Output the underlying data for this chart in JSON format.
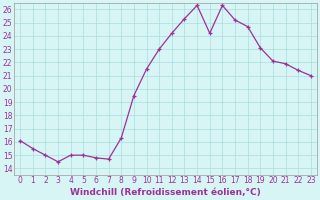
{
  "x": [
    0,
    1,
    2,
    3,
    4,
    5,
    6,
    7,
    8,
    9,
    10,
    11,
    12,
    13,
    14,
    15,
    16,
    17,
    18,
    19,
    20,
    21,
    22,
    23
  ],
  "y": [
    16.1,
    15.5,
    15.0,
    14.5,
    15.0,
    15.0,
    14.8,
    14.7,
    16.3,
    19.5,
    21.5,
    23.0,
    24.2,
    25.3,
    26.3,
    24.2,
    26.3,
    25.2,
    24.7,
    23.1,
    22.1,
    21.9,
    21.4,
    21.0
  ],
  "line_color": "#993399",
  "marker": "+",
  "marker_size": 3,
  "linewidth": 0.9,
  "markeredgewidth": 0.9,
  "background_color": "#d8f5f5",
  "grid_color": "#aadddd",
  "xlabel": "Windchill (Refroidissement éolien,°C)",
  "xlabel_color": "#993399",
  "xlabel_fontsize": 6.5,
  "tick_color": "#993399",
  "tick_fontsize": 5.5,
  "ylim": [
    13.5,
    26.5
  ],
  "yticks": [
    14,
    15,
    16,
    17,
    18,
    19,
    20,
    21,
    22,
    23,
    24,
    25,
    26
  ],
  "xticks": [
    0,
    1,
    2,
    3,
    4,
    5,
    6,
    7,
    8,
    9,
    10,
    11,
    12,
    13,
    14,
    15,
    16,
    17,
    18,
    19,
    20,
    21,
    22,
    23
  ],
  "spine_color": "#999999"
}
